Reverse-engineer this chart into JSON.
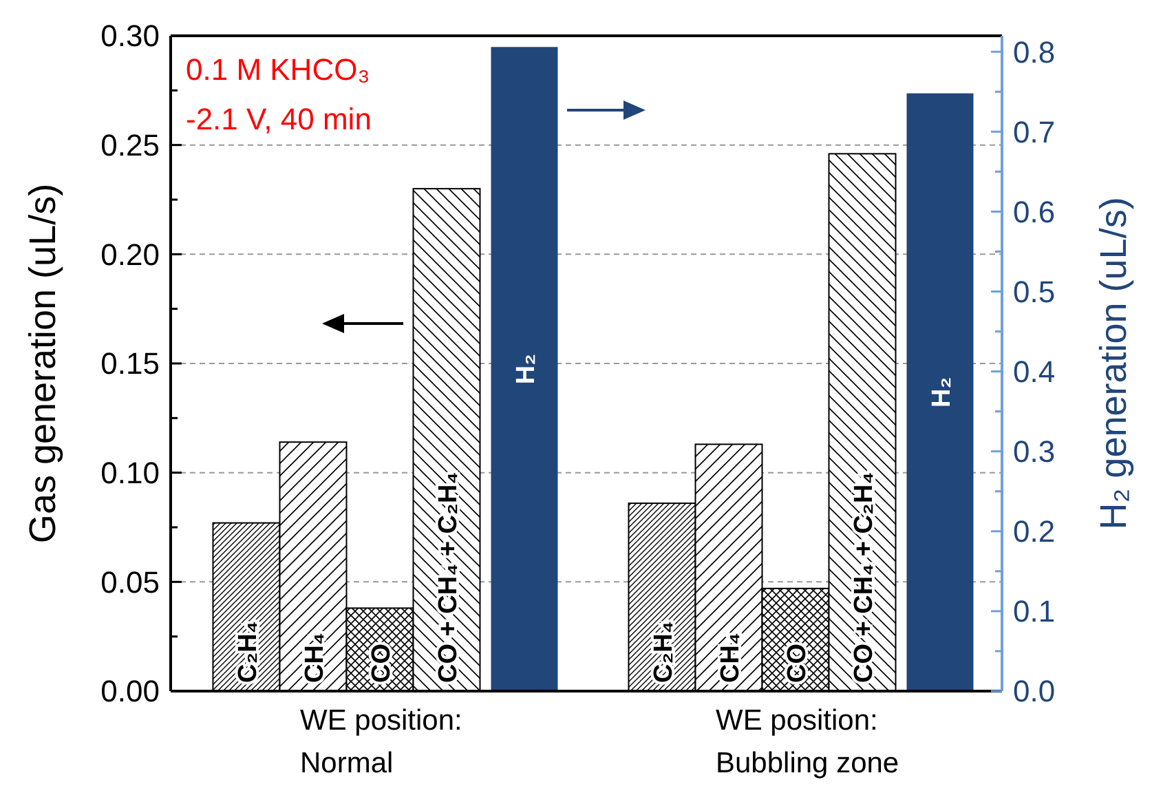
{
  "chart_data": {
    "type": "bar",
    "ylabel": "Gas generation (uL/s)",
    "y2label": "H₂ generation (uL/s)",
    "categories": [
      "WE position:\nNormal",
      "WE position:\nBubbling zone"
    ],
    "series": [
      {
        "name": "C₂H₄",
        "color": "#ffffff",
        "values": [
          0.077,
          0.086
        ]
      },
      {
        "name": "CH₄",
        "color": "#ffffff",
        "values": [
          0.114,
          0.113
        ]
      },
      {
        "name": "CO",
        "color": "#ffffff",
        "values": [
          0.038,
          0.047
        ]
      },
      {
        "name": "CO + CH₄ + C₂H₄",
        "color": "#ffffff",
        "values": [
          0.23,
          0.246
        ]
      },
      {
        "name": "H₂",
        "color": "#21467a",
        "axis": "y2",
        "values": [
          0.806,
          0.748
        ]
      }
    ],
    "ylim": [
      0,
      0.3
    ],
    "yticks": [
      {
        "value": 0,
        "label": "0.00"
      },
      {
        "value": 0.025,
        "label": null
      },
      {
        "value": 0.05,
        "label": "0.05"
      },
      {
        "value": 0.075,
        "label": null
      },
      {
        "value": 0.1,
        "label": "0.10"
      },
      {
        "value": 0.125,
        "label": null
      },
      {
        "value": 0.15,
        "label": "0.15"
      },
      {
        "value": 0.175,
        "label": null
      },
      {
        "value": 0.2,
        "label": "0.20"
      },
      {
        "value": 0.225,
        "label": null
      },
      {
        "value": 0.25,
        "label": "0.25"
      },
      {
        "value": 0.275,
        "label": null
      },
      {
        "value": 0.3,
        "label": "0.30"
      }
    ],
    "y2lim": [
      0,
      0.82
    ],
    "y2ticks": [
      {
        "value": 0,
        "label": "0.0"
      },
      {
        "value": 0.05,
        "label": null
      },
      {
        "value": 0.1,
        "label": "0.1"
      },
      {
        "value": 0.15,
        "label": null
      },
      {
        "value": 0.2,
        "label": "0.2"
      },
      {
        "value": 0.25,
        "label": null
      },
      {
        "value": 0.3,
        "label": "0.3"
      },
      {
        "value": 0.35,
        "label": null
      },
      {
        "value": 0.4,
        "label": "0.4"
      },
      {
        "value": 0.45,
        "label": null
      },
      {
        "value": 0.5,
        "label": "0.5"
      },
      {
        "value": 0.55,
        "label": null
      },
      {
        "value": 0.6,
        "label": "0.6"
      },
      {
        "value": 0.65,
        "label": null
      },
      {
        "value": 0.7,
        "label": "0.7"
      },
      {
        "value": 0.75,
        "label": null
      },
      {
        "value": 0.8,
        "label": "0.8"
      }
    ],
    "grid": "y",
    "annotations": [
      "0.1 M KHCO₃",
      "-2.1 V, 40 min"
    ]
  }
}
